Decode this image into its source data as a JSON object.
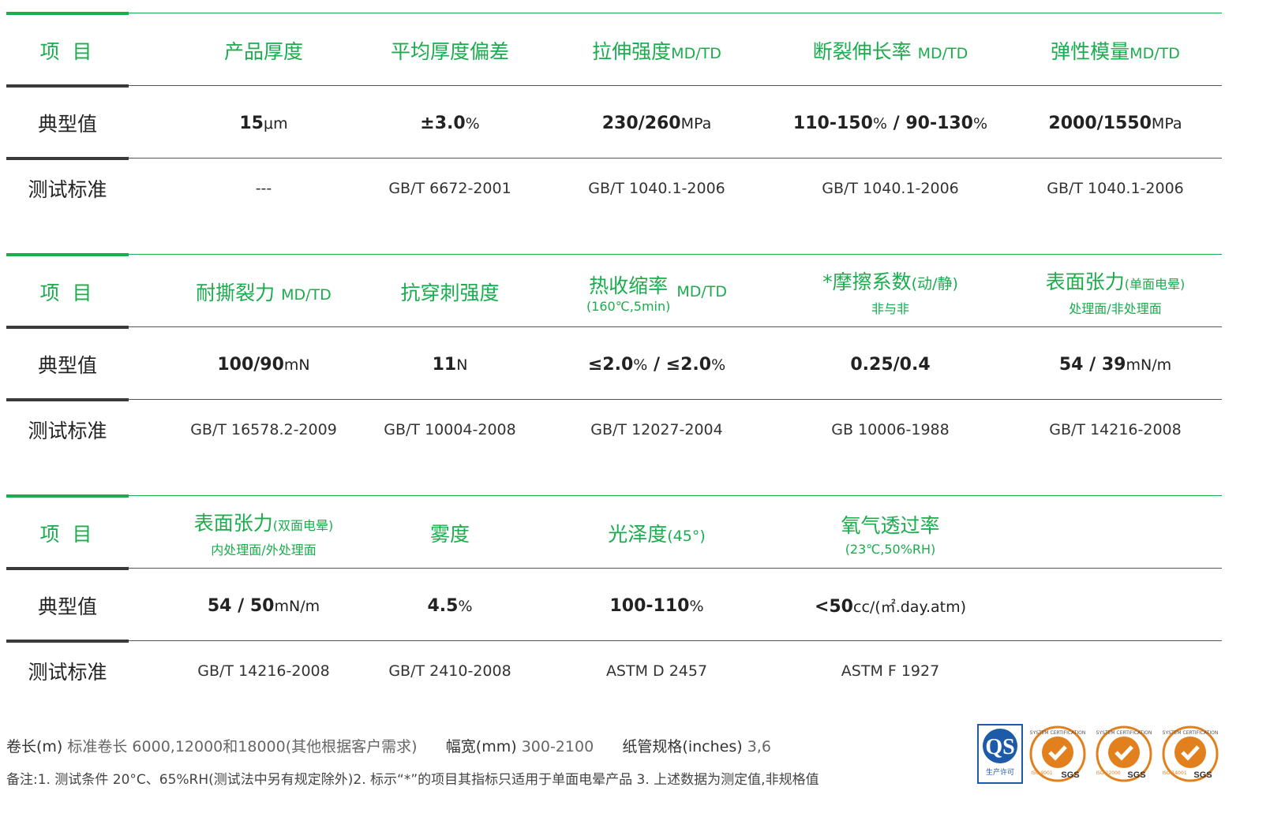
{
  "labels": {
    "item": "项 目",
    "typical": "典型值",
    "standard": "测试标准"
  },
  "block1": {
    "headers": [
      {
        "title": "产品厚度"
      },
      {
        "title": "平均厚度偏差"
      },
      {
        "title": "拉伸强度",
        "suffix": "MD/TD"
      },
      {
        "title": "断裂伸长率",
        "suffix": "MD/TD"
      },
      {
        "title": "弹性模量",
        "suffix": "MD/TD"
      }
    ],
    "values": [
      {
        "main": "15",
        "unit": "μm"
      },
      {
        "main": "±3.0",
        "unit": "%"
      },
      {
        "main": "230/260",
        "unit": "MPa"
      },
      {
        "main": "110-150",
        "unit": "%",
        "main2": " / 90-130",
        "unit2": "%"
      },
      {
        "main": "2000/1550",
        "unit": "MPa"
      }
    ],
    "standards": [
      "---",
      "GB/T 6672-2001",
      "GB/T 1040.1-2006",
      "GB/T 1040.1-2006",
      "GB/T 1040.1-2006"
    ]
  },
  "block2": {
    "headers": [
      {
        "title": "耐撕裂力",
        "suffix": "MD/TD"
      },
      {
        "title": "抗穿刺强度"
      },
      {
        "title": "热收缩率",
        "sub": "(160℃,5min)",
        "suffix": "MD/TD"
      },
      {
        "title": "*摩擦系数",
        "suffix": "(动/静)",
        "sub": "非与非"
      },
      {
        "title": "表面张力",
        "suffix": "(单面电晕)",
        "sub": "处理面/非处理面"
      }
    ],
    "values": [
      {
        "main": "100/90",
        "unit": "mN"
      },
      {
        "main": "11",
        "unit": "N"
      },
      {
        "main": "≤2.0",
        "unit": "%",
        "main2": " / ≤2.0",
        "unit2": "%"
      },
      {
        "main": "0.25/0.4",
        "unit": ""
      },
      {
        "main": "54 / 39",
        "unit": "mN/m"
      }
    ],
    "standards": [
      "GB/T 16578.2-2009",
      "GB/T 10004-2008",
      "GB/T 12027-2004",
      "GB 10006-1988",
      "GB/T 14216-2008"
    ]
  },
  "block3": {
    "headers": [
      {
        "title": "表面张力",
        "suffix": "(双面电晕)",
        "sub": "内处理面/外处理面"
      },
      {
        "title": "雾度"
      },
      {
        "title": "光泽度",
        "suffix": "(45°)"
      },
      {
        "title": "氧气透过率",
        "sub": "(23℃,50%RH)"
      }
    ],
    "values": [
      {
        "main": "54 / 50",
        "unit": "mN/m"
      },
      {
        "main": "4.5",
        "unit": "%"
      },
      {
        "main": "100-110",
        "unit": "%"
      },
      {
        "main": "<50",
        "unit": "cc/(㎡.day.atm)"
      }
    ],
    "standards": [
      "GB/T 14216-2008",
      "GB/T 2410-2008",
      "ASTM D 2457",
      "ASTM F 1927"
    ]
  },
  "footer": {
    "roll_key": "卷长(m)",
    "roll_val": "标准卷长 6000,12000和18000(其他根据客户需求)",
    "width_key": "幅宽(mm)",
    "width_val": "300-2100",
    "core_key": "纸管规格(inches)",
    "core_val": "3,6",
    "note": "备注:1. 测试条件 20°C、65%RH(测试法中另有规定除外)2. 标示“*”的项目其指标只适用于单面电晕产品   3. 上述数据为测定值,非规格值"
  },
  "logos": {
    "qs_text": "生产许可",
    "qs_code": "QS",
    "cert_ring": "SYSTEM CERTIFICATION",
    "sgs": "SGS",
    "iso": [
      "ISO 9001",
      "ISO 22000",
      "ISO 14001"
    ]
  }
}
